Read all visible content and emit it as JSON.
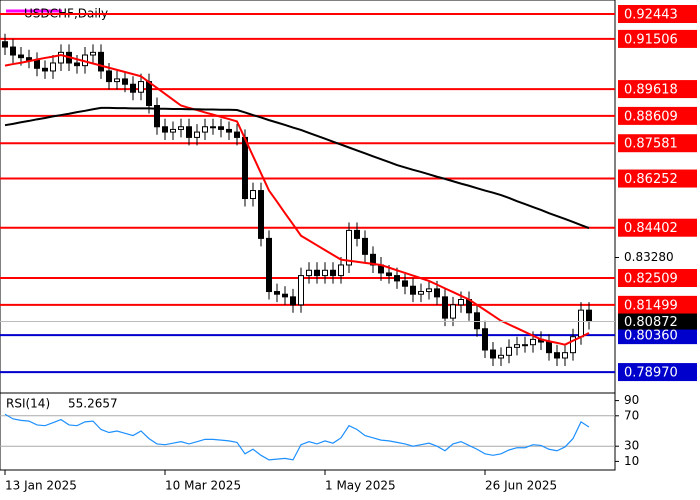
{
  "chart_data": {
    "type": "candlestick",
    "title": "USDCHF,Daily",
    "categories": [
      "13 Jan 2025",
      null,
      null,
      null,
      null,
      null,
      null,
      null,
      null,
      null,
      null,
      null,
      null,
      null,
      null,
      null,
      null,
      null,
      null,
      null,
      "10 Mar 2025",
      null,
      null,
      null,
      null,
      null,
      null,
      null,
      null,
      null,
      null,
      null,
      null,
      null,
      null,
      null,
      null,
      null,
      null,
      null,
      "1 May 2025",
      null,
      null,
      null,
      null,
      null,
      null,
      null,
      null,
      null,
      null,
      null,
      null,
      null,
      null,
      null,
      null,
      null,
      null,
      null,
      "26 Jun 2025",
      null,
      null,
      null,
      null,
      null,
      null,
      null,
      null,
      null,
      null,
      null,
      null,
      null
    ],
    "open": [
      0.914,
      0.912,
      0.909,
      0.908,
      0.907,
      0.904,
      0.903,
      0.906,
      0.91,
      0.906,
      0.905,
      0.909,
      0.91,
      0.903,
      0.899,
      0.9,
      0.898,
      0.895,
      0.899,
      0.89,
      0.882,
      0.88,
      0.881,
      0.882,
      0.878,
      0.88,
      0.882,
      0.882,
      0.881,
      0.88,
      0.878,
      0.855,
      0.858,
      0.84,
      0.82,
      0.819,
      0.818,
      0.815,
      0.826,
      0.828,
      0.826,
      0.828,
      0.826,
      0.83,
      0.843,
      0.84,
      0.834,
      0.83,
      0.827,
      0.826,
      0.824,
      0.822,
      0.819,
      0.82,
      0.821,
      0.818,
      0.81,
      0.815,
      0.817,
      0.812,
      0.806,
      0.798,
      0.795,
      0.796,
      0.799,
      0.8,
      0.8,
      0.802,
      0.801,
      0.797,
      0.795,
      0.797,
      0.803,
      0.813
    ],
    "high": [
      0.917,
      0.915,
      0.912,
      0.911,
      0.91,
      0.907,
      0.909,
      0.913,
      0.913,
      0.909,
      0.912,
      0.913,
      0.913,
      0.906,
      0.903,
      0.903,
      0.901,
      0.902,
      0.902,
      0.893,
      0.885,
      0.884,
      0.885,
      0.885,
      0.883,
      0.885,
      0.885,
      0.885,
      0.884,
      0.883,
      0.881,
      0.861,
      0.861,
      0.843,
      0.823,
      0.822,
      0.821,
      0.829,
      0.831,
      0.831,
      0.831,
      0.831,
      0.833,
      0.846,
      0.846,
      0.843,
      0.837,
      0.833,
      0.83,
      0.829,
      0.827,
      0.825,
      0.823,
      0.824,
      0.824,
      0.821,
      0.818,
      0.82,
      0.82,
      0.815,
      0.809,
      0.801,
      0.799,
      0.802,
      0.803,
      0.803,
      0.805,
      0.805,
      0.804,
      0.8,
      0.8,
      0.806,
      0.816,
      0.816
    ],
    "low": [
      0.909,
      0.906,
      0.905,
      0.904,
      0.901,
      0.9,
      0.9,
      0.903,
      0.903,
      0.902,
      0.902,
      0.906,
      0.9,
      0.896,
      0.896,
      0.895,
      0.892,
      0.892,
      0.887,
      0.879,
      0.877,
      0.877,
      0.878,
      0.875,
      0.875,
      0.877,
      0.879,
      0.878,
      0.877,
      0.875,
      0.852,
      0.852,
      0.837,
      0.817,
      0.816,
      0.815,
      0.812,
      0.812,
      0.823,
      0.823,
      0.823,
      0.823,
      0.823,
      0.827,
      0.837,
      0.831,
      0.827,
      0.824,
      0.823,
      0.821,
      0.819,
      0.816,
      0.816,
      0.817,
      0.815,
      0.807,
      0.807,
      0.812,
      0.809,
      0.803,
      0.795,
      0.792,
      0.792,
      0.793,
      0.796,
      0.797,
      0.797,
      0.798,
      0.794,
      0.792,
      0.792,
      0.794,
      0.8,
      0.8057
    ],
    "close": [
      0.912,
      0.909,
      0.908,
      0.907,
      0.904,
      0.903,
      0.906,
      0.91,
      0.906,
      0.905,
      0.909,
      0.91,
      0.903,
      0.899,
      0.9,
      0.898,
      0.895,
      0.899,
      0.89,
      0.882,
      0.88,
      0.881,
      0.882,
      0.878,
      0.88,
      0.882,
      0.882,
      0.881,
      0.88,
      0.878,
      0.855,
      0.858,
      0.84,
      0.82,
      0.819,
      0.818,
      0.815,
      0.826,
      0.828,
      0.826,
      0.828,
      0.826,
      0.83,
      0.843,
      0.84,
      0.834,
      0.83,
      0.827,
      0.826,
      0.824,
      0.822,
      0.819,
      0.82,
      0.821,
      0.818,
      0.81,
      0.815,
      0.817,
      0.812,
      0.806,
      0.798,
      0.795,
      0.796,
      0.799,
      0.8,
      0.8,
      0.802,
      0.801,
      0.797,
      0.795,
      0.797,
      0.803,
      0.813,
      0.80872
    ],
    "last_label": "0.80872",
    "series": [
      {
        "color": "#ff0000",
        "values": [
          0.905,
          0.9056,
          0.9061,
          0.9067,
          0.9073,
          0.9079,
          0.9084,
          0.909,
          0.9082,
          0.9074,
          0.9066,
          0.9058,
          0.905,
          0.9042,
          0.9034,
          0.9026,
          0.9018,
          0.901,
          0.8988,
          0.8966,
          0.8944,
          0.8922,
          0.89,
          0.8891,
          0.8883,
          0.8874,
          0.8866,
          0.8857,
          0.8849,
          0.884,
          0.8775,
          0.871,
          0.8645,
          0.858,
          0.8538,
          0.8495,
          0.8453,
          0.841,
          0.8392,
          0.8374,
          0.8356,
          0.8338,
          0.832,
          0.8316,
          0.8312,
          0.8308,
          0.8304,
          0.83,
          0.829,
          0.828,
          0.827,
          0.826,
          0.825,
          0.824,
          0.8226,
          0.8212,
          0.8198,
          0.8184,
          0.817,
          0.815,
          0.813,
          0.811,
          0.809,
          0.8076,
          0.8062,
          0.8048,
          0.8034,
          0.802,
          0.8013,
          0.8007,
          0.8,
          0.8015,
          0.8029,
          0.8044
        ]
      },
      {
        "color": "#000000",
        "values": [
          0.8826,
          0.8831,
          0.8837,
          0.8842,
          0.8848,
          0.8853,
          0.8859,
          0.8864,
          0.8869,
          0.8875,
          0.888,
          0.8886,
          0.8891,
          0.8891,
          0.889,
          0.889,
          0.8889,
          0.8889,
          0.8889,
          0.8888,
          0.8888,
          0.8887,
          0.8887,
          0.8886,
          0.8886,
          0.8885,
          0.8885,
          0.8884,
          0.8884,
          0.8883,
          0.8874,
          0.8864,
          0.8855,
          0.8845,
          0.8836,
          0.8827,
          0.8817,
          0.8808,
          0.8797,
          0.8786,
          0.8775,
          0.8764,
          0.8753,
          0.8742,
          0.8731,
          0.872,
          0.8709,
          0.8698,
          0.8687,
          0.8676,
          0.8667,
          0.8658,
          0.865,
          0.8641,
          0.8632,
          0.8624,
          0.8615,
          0.8606,
          0.8598,
          0.8589,
          0.858,
          0.8572,
          0.8563,
          0.8552,
          0.854,
          0.8529,
          0.8518,
          0.8507,
          0.8495,
          0.8484,
          0.8473,
          0.8462,
          0.845,
          0.8439
        ]
      }
    ],
    "ylim": [
      0.7822,
      0.9297
    ],
    "yticks": [
      {
        "value": 0.8328,
        "label": "0.83280"
      }
    ],
    "levels": [
      {
        "value": 0.92443,
        "label": "0.92443",
        "color": "#ff0000"
      },
      {
        "value": 0.91506,
        "label": "0.91506",
        "color": "#ff0000"
      },
      {
        "value": 0.89618,
        "label": "0.89618",
        "color": "#ff0000"
      },
      {
        "value": 0.88609,
        "label": "0.88609",
        "color": "#ff0000"
      },
      {
        "value": 0.87581,
        "label": "0.87581",
        "color": "#ff0000"
      },
      {
        "value": 0.86252,
        "label": "0.86252",
        "color": "#ff0000"
      },
      {
        "value": 0.84402,
        "label": "0.84402",
        "color": "#ff0000"
      },
      {
        "value": 0.82509,
        "label": "0.82509",
        "color": "#ff0000"
      },
      {
        "value": 0.81499,
        "label": "0.81499",
        "color": "#ff0000"
      },
      {
        "value": 0.8036,
        "label": "0.80360",
        "color": "#0000cc"
      },
      {
        "value": 0.7897,
        "label": "0.78970",
        "color": "#0000cc"
      }
    ],
    "rsi": {
      "name": "RSI(14)",
      "color": "#1e90ff",
      "values": [
        72,
        66,
        64,
        63,
        58,
        57,
        61,
        65,
        58,
        57,
        62,
        63,
        52,
        48,
        50,
        47,
        44,
        50,
        40,
        33,
        32,
        34,
        36,
        33,
        36,
        39,
        39,
        38,
        37,
        35,
        20,
        26,
        18,
        12,
        13,
        14,
        12,
        32,
        36,
        33,
        37,
        34,
        41,
        57,
        52,
        44,
        41,
        38,
        37,
        35,
        33,
        30,
        32,
        34,
        30,
        24,
        33,
        36,
        31,
        26,
        20,
        18,
        20,
        25,
        28,
        28,
        32,
        31,
        26,
        24,
        29,
        40,
        62,
        55.2657
      ],
      "ylim": [
        0,
        100
      ],
      "yticks": [
        10,
        30,
        70,
        90
      ],
      "levels": [
        30,
        70
      ]
    }
  }
}
